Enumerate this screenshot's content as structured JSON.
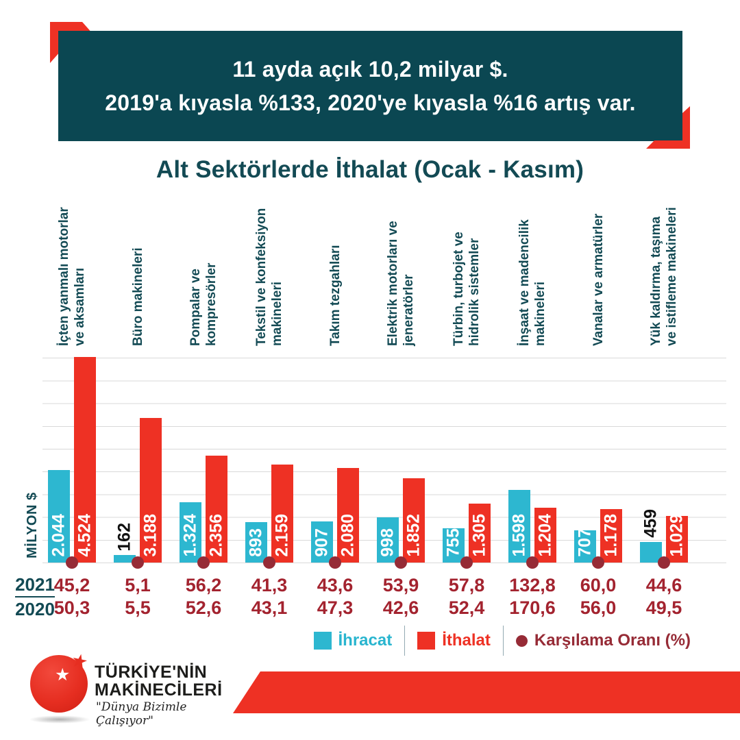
{
  "header": {
    "line1": "11 ayda açık 10,2 milyar $.",
    "line2": "2019'a kıyasla %133, 2020'ye kıyasla %16 artış var."
  },
  "chart_data": {
    "type": "bar",
    "title": "Alt Sektörlerde İthalat (Ocak - Kasım)",
    "ylabel": "MİLYON $",
    "ylim": [
      0,
      4524
    ],
    "gridline_step": 500,
    "grid": true,
    "categories": [
      [
        "İçten yanmalı motorlar",
        "ve aksamları"
      ],
      [
        "Büro makineleri"
      ],
      [
        "Pompalar ve",
        "kompresörler"
      ],
      [
        "Tekstil ve konfeksiyon",
        "makineleri"
      ],
      [
        "Takım tezgahları"
      ],
      [
        "Elektrik motorları ve",
        "jeneratörler"
      ],
      [
        "Türbin, turbojet ve",
        "hidrolik sistemler"
      ],
      [
        "İnşaat ve madencilik",
        "makineleri"
      ],
      [
        "Vanalar ve armatürler"
      ],
      [
        "Yük kaldırma, taşıma",
        "ve istifleme makineleri"
      ]
    ],
    "series": [
      {
        "name": "İhracat",
        "color": "#2db7d0",
        "values": [
          2044,
          162,
          1324,
          893,
          907,
          998,
          755,
          1598,
          707,
          459
        ],
        "labels": [
          "2.044",
          "162",
          "1.324",
          "893",
          "907",
          "998",
          "755",
          "1.598",
          "707",
          "459"
        ]
      },
      {
        "name": "İthalat",
        "color": "#ee3124",
        "values": [
          4524,
          3188,
          2356,
          2159,
          2080,
          1852,
          1305,
          1204,
          1178,
          1029
        ],
        "labels": [
          "4.524",
          "3.188",
          "2.356",
          "2.159",
          "2.080",
          "1.852",
          "1.305",
          "1.204",
          "1.178",
          "1.029"
        ]
      }
    ],
    "coverage_ratio": {
      "name": "Karşılama Oranı (%)",
      "marker_color": "#962b36",
      "rows": [
        {
          "year": "2021",
          "values": [
            "45,2",
            "5,1",
            "56,2",
            "41,3",
            "43,6",
            "53,9",
            "57,8",
            "132,8",
            "60,0",
            "44,6"
          ]
        },
        {
          "year": "2020",
          "values": [
            "50,3",
            "5,5",
            "52,6",
            "43,1",
            "47,3",
            "42,6",
            "52,4",
            "170,6",
            "56,0",
            "49,5"
          ]
        }
      ]
    },
    "legend_position": "bottom-right"
  },
  "legend": {
    "ihracat": "İhracat",
    "ithalat": "İthalat",
    "karsilama": "Karşılama Oranı (%)"
  },
  "logo": {
    "line1": "TÜRKİYE'NİN",
    "line2": "MAKİNECİLERİ",
    "tagline": "\"Dünya Bizimle Çalışıyor\"",
    "star": "★"
  },
  "colors": {
    "teal": "#0b4752",
    "accent_red": "#ee3124",
    "export_blue": "#2db7d0",
    "import_red": "#ee3124",
    "ratio_maroon": "#962b36",
    "gridline": "#d9d9d9"
  }
}
